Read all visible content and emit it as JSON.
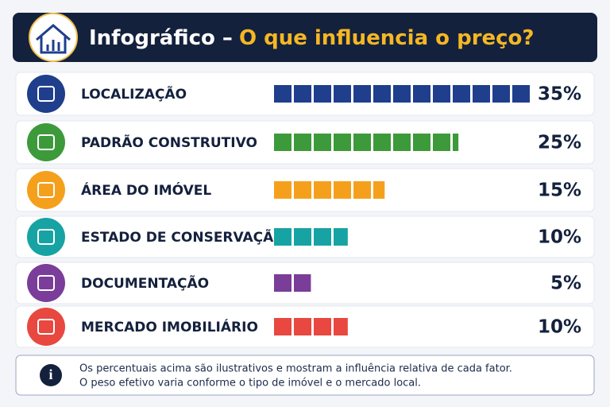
{
  "chart_data": {
    "type": "pictograph",
    "title_prefix": "Infográfico –",
    "title": "O que influencia o preço?",
    "categories": [
      "LOCALIZAÇÃO",
      "PADRÃO CONSTRUTIVO",
      "ÁREA DO IMÓVEL",
      "ESTADO DE CONSERVAÇÃO",
      "DOCUMENTAÇÃO",
      "MERCADO IMOBILIÁRIO"
    ],
    "values": [
      35,
      25,
      15,
      10,
      5,
      10
    ],
    "value_labels": [
      "35%",
      "25%",
      "15%",
      "10%",
      "5%",
      "10%"
    ],
    "colors": [
      "#1f3f8c",
      "#3d9a3a",
      "#f5a01c",
      "#17a3a3",
      "#7a3d99",
      "#e8483f"
    ],
    "note": [
      "Os percentuais acima são ilustrativos e mostram a influência relativa de cada fator.",
      "O peso efetivo varia conforme o tipo de imóvel e o mercado local."
    ]
  }
}
